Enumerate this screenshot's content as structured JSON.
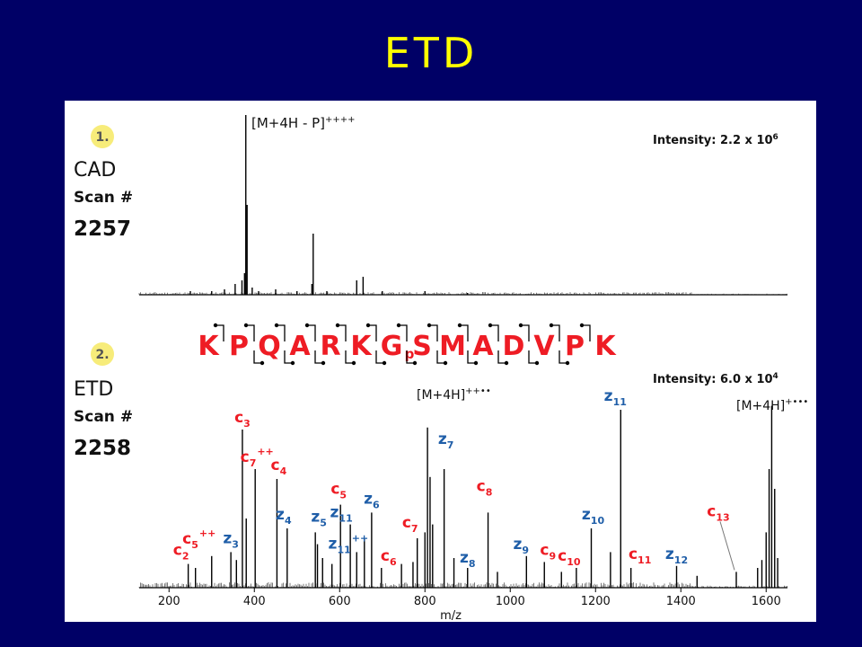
{
  "title": "ETD",
  "colors": {
    "background": "#000066",
    "title": "#ffff00",
    "c_ion": "#ee1c24",
    "z_ion": "#1f5ea8",
    "sequence": "#ee1c24",
    "badge": "#f7ec7a"
  },
  "panel1": {
    "badge": "1.",
    "method": "CAD",
    "scan_label": "Scan #",
    "scan_number": "2257",
    "intensity_label": "Intensity:  2.2 x 10",
    "intensity_exp": "6",
    "precursor_label": "[M+4H - P]",
    "precursor_sup": "++++"
  },
  "panel2": {
    "badge": "2.",
    "method": "ETD",
    "scan_label": "Scan #",
    "scan_number": "2258",
    "intensity_label": "Intensity:  6.0 x 10",
    "intensity_exp": "4",
    "precursor_label": "[M+4H]",
    "precursor_sup": "++••",
    "charge_reduced_label": "[M+4H]",
    "charge_reduced_sup": "+•••"
  },
  "sequence": {
    "residues": [
      "K",
      "P",
      "Q",
      "A",
      "R",
      "K",
      "G",
      "S",
      "M",
      "A",
      "D",
      "V",
      "P",
      "K"
    ],
    "phospho_prefix": "p"
  },
  "chart_data": [
    {
      "type": "bar",
      "xlim": [
        130,
        1650
      ],
      "ylim": [
        0,
        100
      ],
      "annotations": [
        "[M+4H - P]++++"
      ],
      "peaks": [
        {
          "x": 380,
          "y": 100
        },
        {
          "x": 383,
          "y": 50
        },
        {
          "x": 377,
          "y": 12
        },
        {
          "x": 371,
          "y": 8
        },
        {
          "x": 355,
          "y": 6
        },
        {
          "x": 330,
          "y": 3
        },
        {
          "x": 300,
          "y": 2
        },
        {
          "x": 250,
          "y": 2
        },
        {
          "x": 395,
          "y": 4
        },
        {
          "x": 410,
          "y": 2
        },
        {
          "x": 450,
          "y": 3
        },
        {
          "x": 500,
          "y": 2
        },
        {
          "x": 538,
          "y": 34
        },
        {
          "x": 535,
          "y": 6
        },
        {
          "x": 570,
          "y": 2
        },
        {
          "x": 640,
          "y": 8
        },
        {
          "x": 655,
          "y": 10
        },
        {
          "x": 700,
          "y": 2
        },
        {
          "x": 800,
          "y": 2
        },
        {
          "x": 900,
          "y": 1
        }
      ]
    },
    {
      "type": "bar",
      "xlim": [
        130,
        1650
      ],
      "ylim": [
        0,
        100
      ],
      "xlabel": "m/z",
      "xticks": [
        200,
        400,
        600,
        800,
        1000,
        1200,
        1400,
        1600
      ],
      "peaks": [
        {
          "x": 245,
          "y": 12
        },
        {
          "x": 262,
          "y": 10
        },
        {
          "x": 300,
          "y": 16
        },
        {
          "x": 345,
          "y": 18
        },
        {
          "x": 358,
          "y": 14
        },
        {
          "x": 372,
          "y": 80
        },
        {
          "x": 381,
          "y": 35
        },
        {
          "x": 402,
          "y": 60
        },
        {
          "x": 453,
          "y": 55
        },
        {
          "x": 477,
          "y": 30
        },
        {
          "x": 543,
          "y": 28
        },
        {
          "x": 548,
          "y": 22
        },
        {
          "x": 560,
          "y": 15
        },
        {
          "x": 582,
          "y": 12
        },
        {
          "x": 602,
          "y": 42
        },
        {
          "x": 625,
          "y": 32
        },
        {
          "x": 640,
          "y": 18
        },
        {
          "x": 658,
          "y": 25
        },
        {
          "x": 675,
          "y": 38
        },
        {
          "x": 698,
          "y": 10
        },
        {
          "x": 745,
          "y": 12
        },
        {
          "x": 772,
          "y": 13
        },
        {
          "x": 782,
          "y": 25
        },
        {
          "x": 800,
          "y": 28
        },
        {
          "x": 806,
          "y": 81
        },
        {
          "x": 812,
          "y": 56
        },
        {
          "x": 818,
          "y": 32
        },
        {
          "x": 845,
          "y": 60
        },
        {
          "x": 868,
          "y": 15
        },
        {
          "x": 900,
          "y": 10
        },
        {
          "x": 948,
          "y": 38
        },
        {
          "x": 970,
          "y": 8
        },
        {
          "x": 1038,
          "y": 16
        },
        {
          "x": 1080,
          "y": 13
        },
        {
          "x": 1120,
          "y": 8
        },
        {
          "x": 1155,
          "y": 10
        },
        {
          "x": 1190,
          "y": 30
        },
        {
          "x": 1235,
          "y": 18
        },
        {
          "x": 1259,
          "y": 90
        },
        {
          "x": 1283,
          "y": 10
        },
        {
          "x": 1390,
          "y": 11
        },
        {
          "x": 1438,
          "y": 6
        },
        {
          "x": 1530,
          "y": 8
        },
        {
          "x": 1580,
          "y": 10
        },
        {
          "x": 1590,
          "y": 14
        },
        {
          "x": 1600,
          "y": 28
        },
        {
          "x": 1607,
          "y": 60
        },
        {
          "x": 1613,
          "y": 92
        },
        {
          "x": 1620,
          "y": 50
        },
        {
          "x": 1627,
          "y": 15
        }
      ],
      "ion_labels": [
        {
          "base": "c",
          "sub": "3",
          "x": 372,
          "y": 80,
          "kind": "c"
        },
        {
          "base": "c",
          "sub": "7",
          "sup": "++",
          "x": 402,
          "y": 60,
          "kind": "c"
        },
        {
          "base": "c",
          "sub": "4",
          "x": 453,
          "y": 55,
          "kind": "c"
        },
        {
          "base": "c",
          "sub": "5",
          "sup": "++",
          "x": 300,
          "y": 16,
          "kind": "c"
        },
        {
          "base": "c",
          "sub": "2",
          "x": 245,
          "y": 12,
          "kind": "c"
        },
        {
          "base": "z",
          "sub": "3",
          "x": 345,
          "y": 18,
          "kind": "z"
        },
        {
          "base": "z",
          "sub": "4",
          "x": 477,
          "y": 30,
          "kind": "z"
        },
        {
          "base": "z",
          "sub": "5",
          "x": 543,
          "y": 28,
          "kind": "z"
        },
        {
          "base": "c",
          "sub": "5",
          "x": 602,
          "y": 42,
          "kind": "c"
        },
        {
          "base": "z",
          "sub": "11",
          "x": 625,
          "y": 32,
          "kind": "z"
        },
        {
          "base": "z",
          "sub": "6",
          "x": 675,
          "y": 38,
          "kind": "z"
        },
        {
          "base": "z",
          "sub": "11",
          "sup": "++",
          "x": 675,
          "y": 38,
          "kind": "z"
        },
        {
          "base": "c",
          "sub": "6",
          "x": 698,
          "y": 10,
          "kind": "c"
        },
        {
          "base": "c",
          "sub": "7",
          "x": 782,
          "y": 25,
          "kind": "c"
        },
        {
          "base": "z",
          "sub": "7",
          "x": 845,
          "y": 60,
          "kind": "z"
        },
        {
          "base": "z",
          "sub": "8",
          "x": 900,
          "y": 10,
          "kind": "z"
        },
        {
          "base": "c",
          "sub": "8",
          "x": 948,
          "y": 38,
          "kind": "c"
        },
        {
          "base": "z",
          "sub": "9",
          "x": 1038,
          "y": 16,
          "kind": "z"
        },
        {
          "base": "c",
          "sub": "9",
          "x": 1080,
          "y": 13,
          "kind": "c"
        },
        {
          "base": "c",
          "sub": "10",
          "x": 1155,
          "y": 10,
          "kind": "c"
        },
        {
          "base": "z",
          "sub": "10",
          "x": 1190,
          "y": 30,
          "kind": "z"
        },
        {
          "base": "z",
          "sub": "11",
          "x": 1259,
          "y": 90,
          "kind": "z"
        },
        {
          "base": "c",
          "sub": "11",
          "x": 1283,
          "y": 10,
          "kind": "c"
        },
        {
          "base": "z",
          "sub": "12",
          "x": 1390,
          "y": 11,
          "kind": "z"
        },
        {
          "base": "c",
          "sub": "13",
          "x": 1530,
          "y": 8,
          "kind": "c"
        }
      ]
    }
  ]
}
